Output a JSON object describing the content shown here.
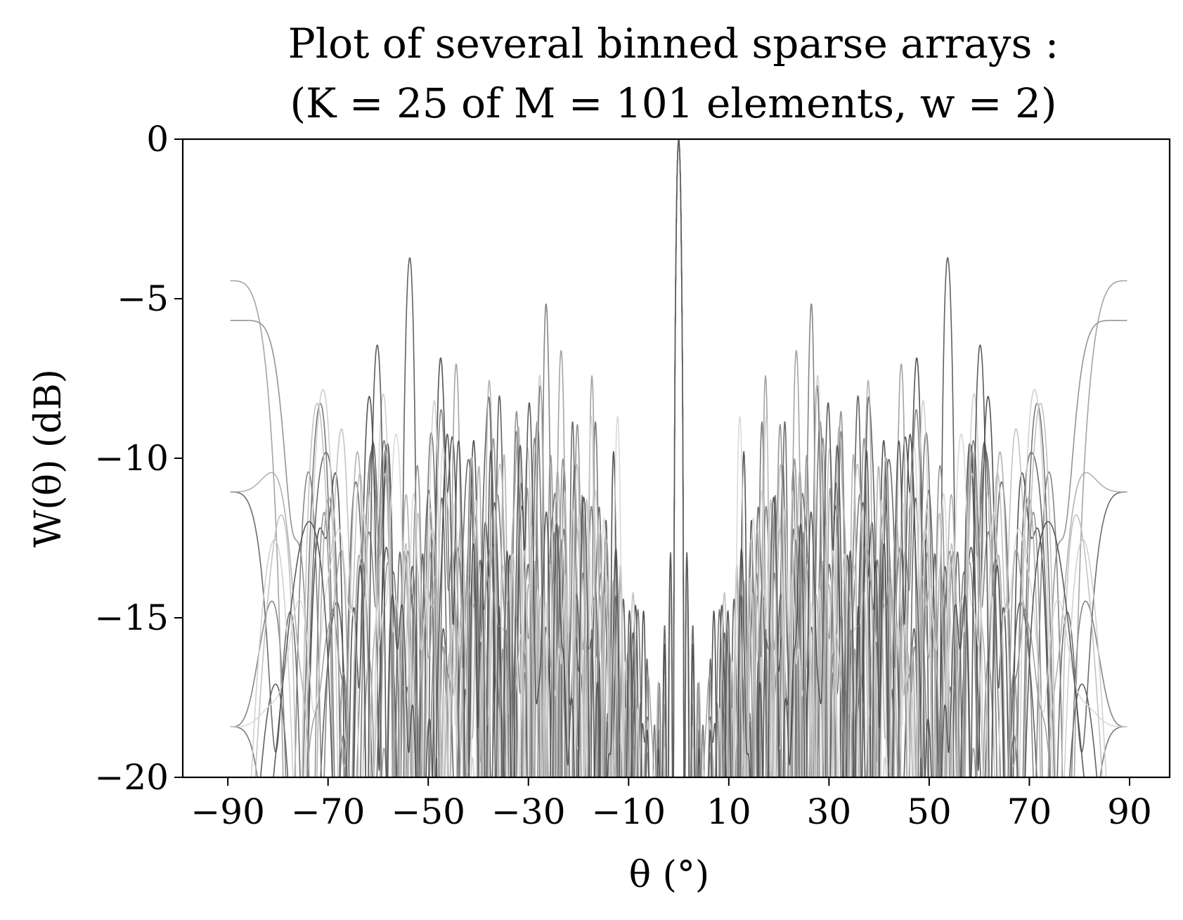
{
  "chart_data": {
    "type": "line",
    "title_line1": "Plot of several binned sparse arrays :",
    "title_line2": "(K = 25 of M = 101 elements, w = 2)",
    "xlabel": "θ (°)",
    "ylabel": "W(θ) (dB)",
    "xlim": [
      -99,
      98
    ],
    "ylim": [
      -20,
      0
    ],
    "x_ticks": [
      -90,
      -70,
      -50,
      -30,
      -10,
      10,
      30,
      50,
      70,
      90
    ],
    "x_tick_labels": [
      "−90",
      "−70",
      "−50",
      "−30",
      "−10",
      "10",
      "30",
      "50",
      "70",
      "90"
    ],
    "y_ticks": [
      0,
      -5,
      -10,
      -15,
      -20
    ],
    "y_tick_labels": [
      "0",
      "−5",
      "−10",
      "−15",
      "−20"
    ],
    "grid": false,
    "legend": "none",
    "array_elements_total": 101,
    "array_elements_active": 25,
    "bin_width": 2,
    "num_realizations": 12,
    "x_range_plotted": [
      -89.5,
      89.5
    ],
    "series_colors": [
      "#404040",
      "#505050",
      "#5c5c5c",
      "#6a6a6a",
      "#787878",
      "#888888",
      "#9a9a9a",
      "#aaaaaa",
      "#bcbcbc",
      "#cccccc",
      "#d6d6d6",
      "#4a4a4a"
    ]
  }
}
